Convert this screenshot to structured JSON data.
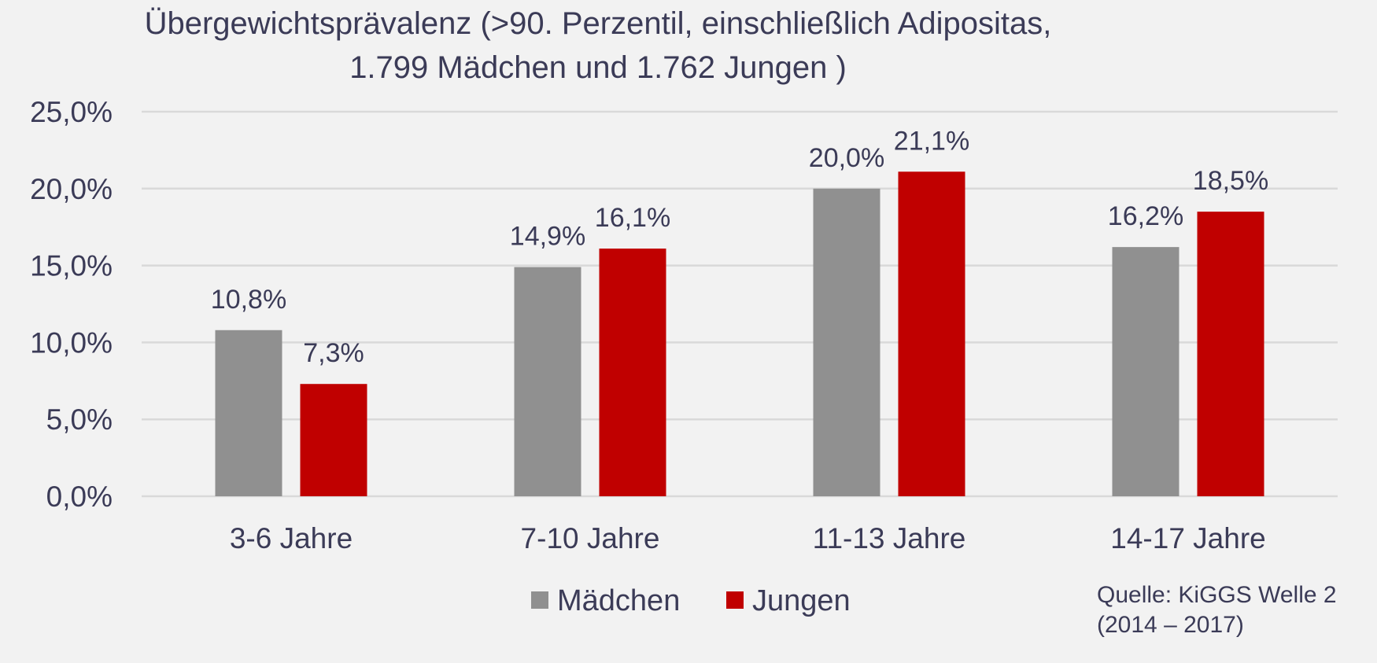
{
  "chart_data": {
    "type": "bar",
    "title_lines": [
      "Übergewichtsprävalenz (>90. Perzentil, einschließlich Adipositas,",
      "1.799 Mädchen und 1.762 Jungen )"
    ],
    "categories": [
      "3-6 Jahre",
      "7-10 Jahre",
      "11-13 Jahre",
      "14-17 Jahre"
    ],
    "series": [
      {
        "name": "Mädchen",
        "color": "#909090",
        "values": [
          10.8,
          14.9,
          20.0,
          16.2
        ],
        "labels": [
          "10,8%",
          "14,9%",
          "20,0%",
          "16,2%"
        ]
      },
      {
        "name": "Jungen",
        "color": "#c00000",
        "values": [
          7.3,
          16.1,
          21.1,
          18.5
        ],
        "labels": [
          "7,3%",
          "16,1%",
          "21,1%",
          "18,5%"
        ]
      }
    ],
    "ylim": [
      0,
      25
    ],
    "yticks": [
      0,
      5,
      10,
      15,
      20,
      25
    ],
    "ytick_labels": [
      "0,0%",
      "5,0%",
      "10,0%",
      "15,0%",
      "20,0%",
      "25,0%"
    ],
    "xlabel": "",
    "ylabel": "",
    "grid": true,
    "legend_position": "bottom",
    "gridline_color": "#d9d9d9",
    "text_color": "#3b3b57"
  },
  "source": {
    "line1": "Quelle: KiGGS Welle 2",
    "line2": "(2014 – 2017)"
  }
}
